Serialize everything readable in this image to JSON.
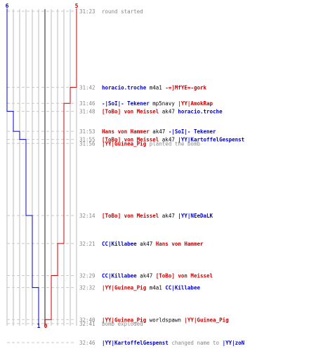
{
  "colors": {
    "ct": "#0000cc",
    "t": "#cc0000",
    "grey": "#888888",
    "grid": "#bbbbbb",
    "center": "#666666",
    "black": "#000000"
  },
  "chart_data": {
    "type": "line",
    "title": "",
    "xlabel": "",
    "ylabel": "",
    "y_axis": "time (mm:ss)",
    "x_axis_ticks_left": [
      "6",
      "1"
    ],
    "x_axis_ticks_right": [
      "5",
      "0"
    ],
    "series": [
      {
        "name": "",
        "color_key": "ct",
        "points": [
          {
            "time": "31:23",
            "alive": 6
          },
          {
            "time": "31:48",
            "alive": 5
          },
          {
            "time": "31:53",
            "alive": 4
          },
          {
            "time": "31:55",
            "alive": 3
          },
          {
            "time": "32:14",
            "alive": 2
          },
          {
            "time": "32:32",
            "alive": 1
          },
          {
            "time": "32:41",
            "alive": 1
          }
        ]
      },
      {
        "name": "",
        "color_key": "t",
        "points": [
          {
            "time": "31:23",
            "alive": 5
          },
          {
            "time": "31:42",
            "alive": 4
          },
          {
            "time": "31:46",
            "alive": 3
          },
          {
            "time": "32:21",
            "alive": 2
          },
          {
            "time": "32:29",
            "alive": 1
          },
          {
            "time": "32:40",
            "alive": 0
          },
          {
            "time": "32:41",
            "alive": 0
          }
        ]
      }
    ],
    "events": [
      {
        "time": "31:23",
        "parts": [
          {
            "t": "round started",
            "c": "grey"
          }
        ]
      },
      {
        "time": "31:42",
        "parts": [
          {
            "t": "horacio.troche",
            "c": "ct"
          },
          {
            "t": " m4a1 ",
            "c": "black"
          },
          {
            "t": "-=]MfYE=-gork",
            "c": "t"
          }
        ]
      },
      {
        "time": "31:46",
        "parts": [
          {
            "t": "-|SoI|- Tekener",
            "c": "ct"
          },
          {
            "t": " mp5navy ",
            "c": "black"
          },
          {
            "t": "|YY|AmokRap",
            "c": "t"
          }
        ]
      },
      {
        "time": "31:48",
        "parts": [
          {
            "t": "[ToBo] von Meissel",
            "c": "t"
          },
          {
            "t": " ak47 ",
            "c": "black"
          },
          {
            "t": "horacio.troche",
            "c": "ct"
          }
        ]
      },
      {
        "time": "31:53",
        "parts": [
          {
            "t": "Hans von Hammer",
            "c": "t"
          },
          {
            "t": " ak47 ",
            "c": "black"
          },
          {
            "t": "-|SoI|- Tekener",
            "c": "ct"
          }
        ]
      },
      {
        "time": "31:55",
        "parts": [
          {
            "t": "[ToBo] von Meissel",
            "c": "t"
          },
          {
            "t": " ak47 ",
            "c": "black"
          },
          {
            "t": "|YY|KartoffelGespenst",
            "c": "ct"
          }
        ]
      },
      {
        "time": "31:56",
        "parts": [
          {
            "t": "|YY|Guinea_Pig",
            "c": "t"
          },
          {
            "t": " planted the bomb",
            "c": "grey"
          }
        ]
      },
      {
        "time": "32:14",
        "parts": [
          {
            "t": "[ToBo] von Meissel",
            "c": "t"
          },
          {
            "t": " ak47 ",
            "c": "black"
          },
          {
            "t": "|YY|NEeDaLK",
            "c": "ct"
          }
        ]
      },
      {
        "time": "32:21",
        "parts": [
          {
            "t": "CC|Killabee",
            "c": "ct"
          },
          {
            "t": " ak47 ",
            "c": "black"
          },
          {
            "t": "Hans von Hammer",
            "c": "t"
          }
        ]
      },
      {
        "time": "32:29",
        "parts": [
          {
            "t": "CC|Killabee",
            "c": "ct"
          },
          {
            "t": " ak47 ",
            "c": "black"
          },
          {
            "t": "[ToBo] von Meissel",
            "c": "t"
          }
        ]
      },
      {
        "time": "32:32",
        "parts": [
          {
            "t": "|YY|Guinea_Pig",
            "c": "t"
          },
          {
            "t": " m4a1 ",
            "c": "black"
          },
          {
            "t": "CC|Killabee",
            "c": "ct"
          }
        ]
      },
      {
        "time": "32:40",
        "parts": [
          {
            "t": "|YY|Guinea_Pig",
            "c": "t"
          },
          {
            "t": " worldspawn ",
            "c": "black"
          },
          {
            "t": "|YY|Guinea_Pig",
            "c": "t"
          }
        ]
      },
      {
        "time": "32:41",
        "parts": [
          {
            "t": "bomb exploded",
            "c": "grey"
          }
        ]
      },
      {
        "time": "32:46",
        "parts": [
          {
            "t": "|YY|KartoffelGespenst",
            "c": "ct"
          },
          {
            "t": " changed name to ",
            "c": "grey"
          },
          {
            "t": "|YY|zoN",
            "c": "ct"
          }
        ]
      }
    ]
  }
}
